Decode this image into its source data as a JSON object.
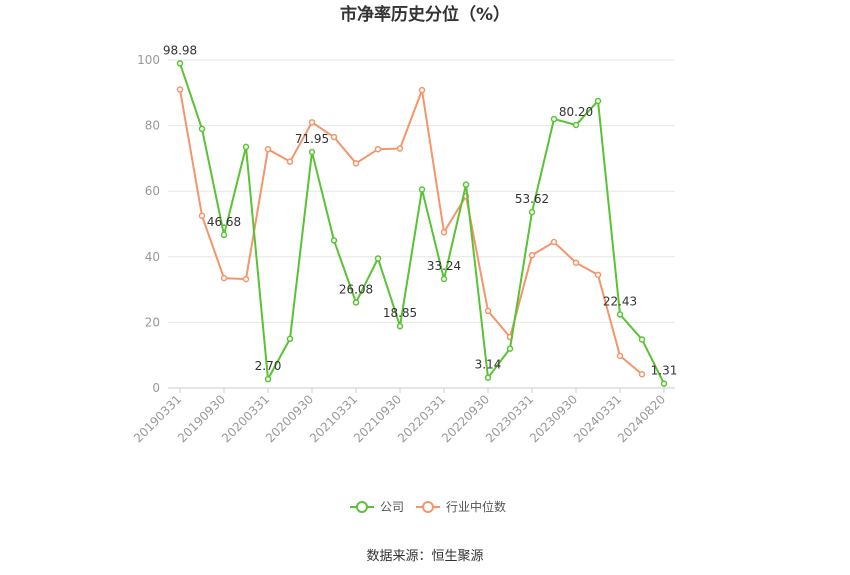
{
  "chart_data": {
    "type": "line",
    "title": "市净率历史分位（%）",
    "source": "数据来源：恒生聚源",
    "ylim": [
      0,
      100
    ],
    "yticks": [
      0,
      20,
      40,
      60,
      80,
      100
    ],
    "x": [
      "20190331",
      "20190630",
      "20190930",
      "20191231",
      "20200331",
      "20200630",
      "20200930",
      "20201231",
      "20210331",
      "20210630",
      "20210930",
      "20211231",
      "20220331",
      "20220630",
      "20220930",
      "20221231",
      "20230331",
      "20230630",
      "20230930",
      "20231231",
      "20240331",
      "20240630",
      "20240820"
    ],
    "xtick_labels": [
      "20190331",
      "20190930",
      "20200331",
      "20200930",
      "20210331",
      "20210930",
      "20220331",
      "20220930",
      "20230331",
      "20230930",
      "20240331",
      "20240820"
    ],
    "xtick_indices": [
      0,
      2,
      4,
      6,
      8,
      10,
      12,
      14,
      16,
      18,
      20,
      22
    ],
    "legend_position": "bottom",
    "series": [
      {
        "name": "公司",
        "color": "#5ac235",
        "values": [
          98.98,
          79,
          46.68,
          73.5,
          2.7,
          15,
          71.95,
          45,
          26.08,
          39.5,
          18.85,
          60.5,
          33.24,
          62,
          3.14,
          12,
          53.62,
          82,
          80.2,
          87.5,
          22.43,
          14.8,
          1.31
        ],
        "labels": [
          "98.98",
          null,
          "46.68",
          null,
          "2.70",
          null,
          "71.95",
          null,
          "26.08",
          null,
          "18.85",
          null,
          "33.24",
          null,
          "3.14",
          null,
          "53.62",
          null,
          "80.20",
          null,
          "22.43",
          null,
          "1.31"
        ]
      },
      {
        "name": "行业中位数",
        "color": "#f4956a",
        "values": [
          91,
          52.5,
          33.5,
          33.2,
          72.8,
          69,
          81,
          76.5,
          68.5,
          72.8,
          73,
          90.8,
          47.5,
          58.5,
          23.5,
          15.5,
          40.5,
          44.5,
          38.2,
          34.5,
          9.8,
          4.2,
          null
        ]
      }
    ]
  }
}
